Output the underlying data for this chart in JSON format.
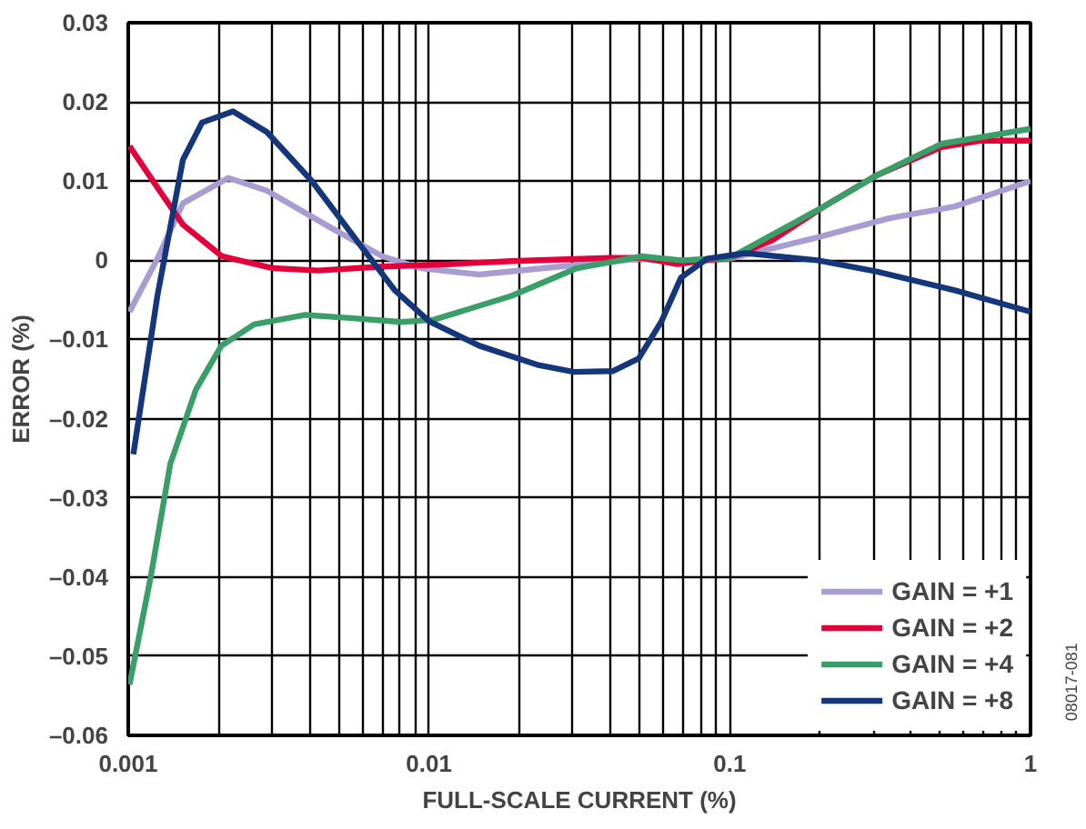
{
  "chart_data": {
    "type": "line",
    "xlabel": "FULL-SCALE CURRENT (%)",
    "ylabel": "ERROR (%)",
    "log": "x",
    "xlim": [
      0.001,
      1
    ],
    "ylim": [
      -0.06,
      0.03
    ],
    "xticks": [
      {
        "value": 0.001,
        "label": "0.001"
      },
      {
        "value": 0.002,
        "label": null
      },
      {
        "value": 0.003,
        "label": null
      },
      {
        "value": 0.004,
        "label": null
      },
      {
        "value": 0.005,
        "label": null
      },
      {
        "value": 0.006,
        "label": null
      },
      {
        "value": 0.007,
        "label": null
      },
      {
        "value": 0.008,
        "label": null
      },
      {
        "value": 0.009,
        "label": null
      },
      {
        "value": 0.01,
        "label": "0.01"
      },
      {
        "value": 0.02,
        "label": null
      },
      {
        "value": 0.03,
        "label": null
      },
      {
        "value": 0.04,
        "label": null
      },
      {
        "value": 0.05,
        "label": null
      },
      {
        "value": 0.06,
        "label": null
      },
      {
        "value": 0.07,
        "label": null
      },
      {
        "value": 0.08,
        "label": null
      },
      {
        "value": 0.09,
        "label": null
      },
      {
        "value": 0.1,
        "label": "0.1"
      },
      {
        "value": 0.2,
        "label": null
      },
      {
        "value": 0.3,
        "label": null
      },
      {
        "value": 0.4,
        "label": null
      },
      {
        "value": 0.5,
        "label": null
      },
      {
        "value": 0.6,
        "label": null
      },
      {
        "value": 0.7,
        "label": null
      },
      {
        "value": 0.8,
        "label": null
      },
      {
        "value": 0.9,
        "label": null
      },
      {
        "value": 1,
        "label": "1"
      }
    ],
    "yticks": [
      {
        "value": -0.06,
        "label": "–0.06"
      },
      {
        "value": -0.05,
        "label": "–0.05"
      },
      {
        "value": -0.04,
        "label": "–0.04"
      },
      {
        "value": -0.03,
        "label": "–0.03"
      },
      {
        "value": -0.02,
        "label": "–0.02"
      },
      {
        "value": -0.01,
        "label": "–0.01"
      },
      0,
      0.01,
      0.02,
      0.03
    ],
    "grid": true,
    "legend": "bottom right",
    "marker": "none",
    "line_style": "solid",
    "annotations": [
      "08017-081"
    ],
    "series": [
      {
        "name": "GAIN = +1",
        "color": "#a99cd2",
        "x": [
          0.00101,
          0.00125,
          0.00152,
          0.00215,
          0.00289,
          0.00472,
          0.007,
          0.0094,
          0.0147,
          0.0188,
          0.031,
          0.051,
          0.0688,
          0.1,
          0.196,
          0.339,
          0.56,
          1
        ],
        "values": [
          -0.0065,
          0.0002,
          0.0072,
          0.0104,
          0.0088,
          0.0041,
          0.0005,
          -0.001,
          -0.0018,
          -0.0014,
          -0.0006,
          0.0002,
          0.0,
          0.0002,
          0.0029,
          0.0053,
          0.0068,
          0.01
        ]
      },
      {
        "name": "GAIN = +2",
        "color": "#e4003a",
        "x": [
          0.00101,
          0.00125,
          0.00152,
          0.00205,
          0.00303,
          0.00428,
          0.007,
          0.0115,
          0.0188,
          0.0398,
          0.051,
          0.067,
          0.084,
          0.1,
          0.138,
          0.206,
          0.307,
          0.505,
          0.68,
          1
        ],
        "values": [
          0.0144,
          0.0092,
          0.0045,
          0.0005,
          -0.001,
          -0.0013,
          -0.0008,
          -0.0005,
          -0.0001,
          0.0003,
          0.0003,
          -0.0005,
          0.0,
          0.0003,
          0.0025,
          0.0068,
          0.0107,
          0.0143,
          0.0151,
          0.0151
        ]
      },
      {
        "name": "GAIN = +4",
        "color": "#3a9e68",
        "x": [
          0.00101,
          0.00119,
          0.00138,
          0.00168,
          0.00204,
          0.00262,
          0.00388,
          0.00548,
          0.0081,
          0.0104,
          0.0188,
          0.031,
          0.051,
          0.0688,
          0.1,
          0.206,
          0.307,
          0.505,
          1
        ],
        "values": [
          -0.0536,
          -0.0398,
          -0.0257,
          -0.0163,
          -0.0108,
          -0.0081,
          -0.0069,
          -0.0073,
          -0.0078,
          -0.0075,
          -0.0045,
          -0.001,
          0.0005,
          0.0,
          0.0003,
          0.0068,
          0.0107,
          0.0147,
          0.0166
        ]
      },
      {
        "name": "GAIN = +8",
        "color": "#13377a",
        "x": [
          0.00104,
          0.00125,
          0.00152,
          0.00176,
          0.00223,
          0.00289,
          0.00408,
          0.00575,
          0.0077,
          0.01,
          0.0147,
          0.0229,
          0.0303,
          0.0408,
          0.0498,
          0.0593,
          0.0688,
          0.084,
          0.113,
          0.196,
          0.307,
          0.56,
          1
        ],
        "values": [
          -0.0245,
          -0.0045,
          0.0127,
          0.0174,
          0.0188,
          0.0162,
          0.01,
          0.0025,
          -0.0038,
          -0.0077,
          -0.0108,
          -0.0132,
          -0.0141,
          -0.014,
          -0.0124,
          -0.0077,
          -0.0022,
          0.0002,
          0.0009,
          0.0,
          -0.0014,
          -0.0038,
          -0.0065
        ]
      }
    ]
  }
}
